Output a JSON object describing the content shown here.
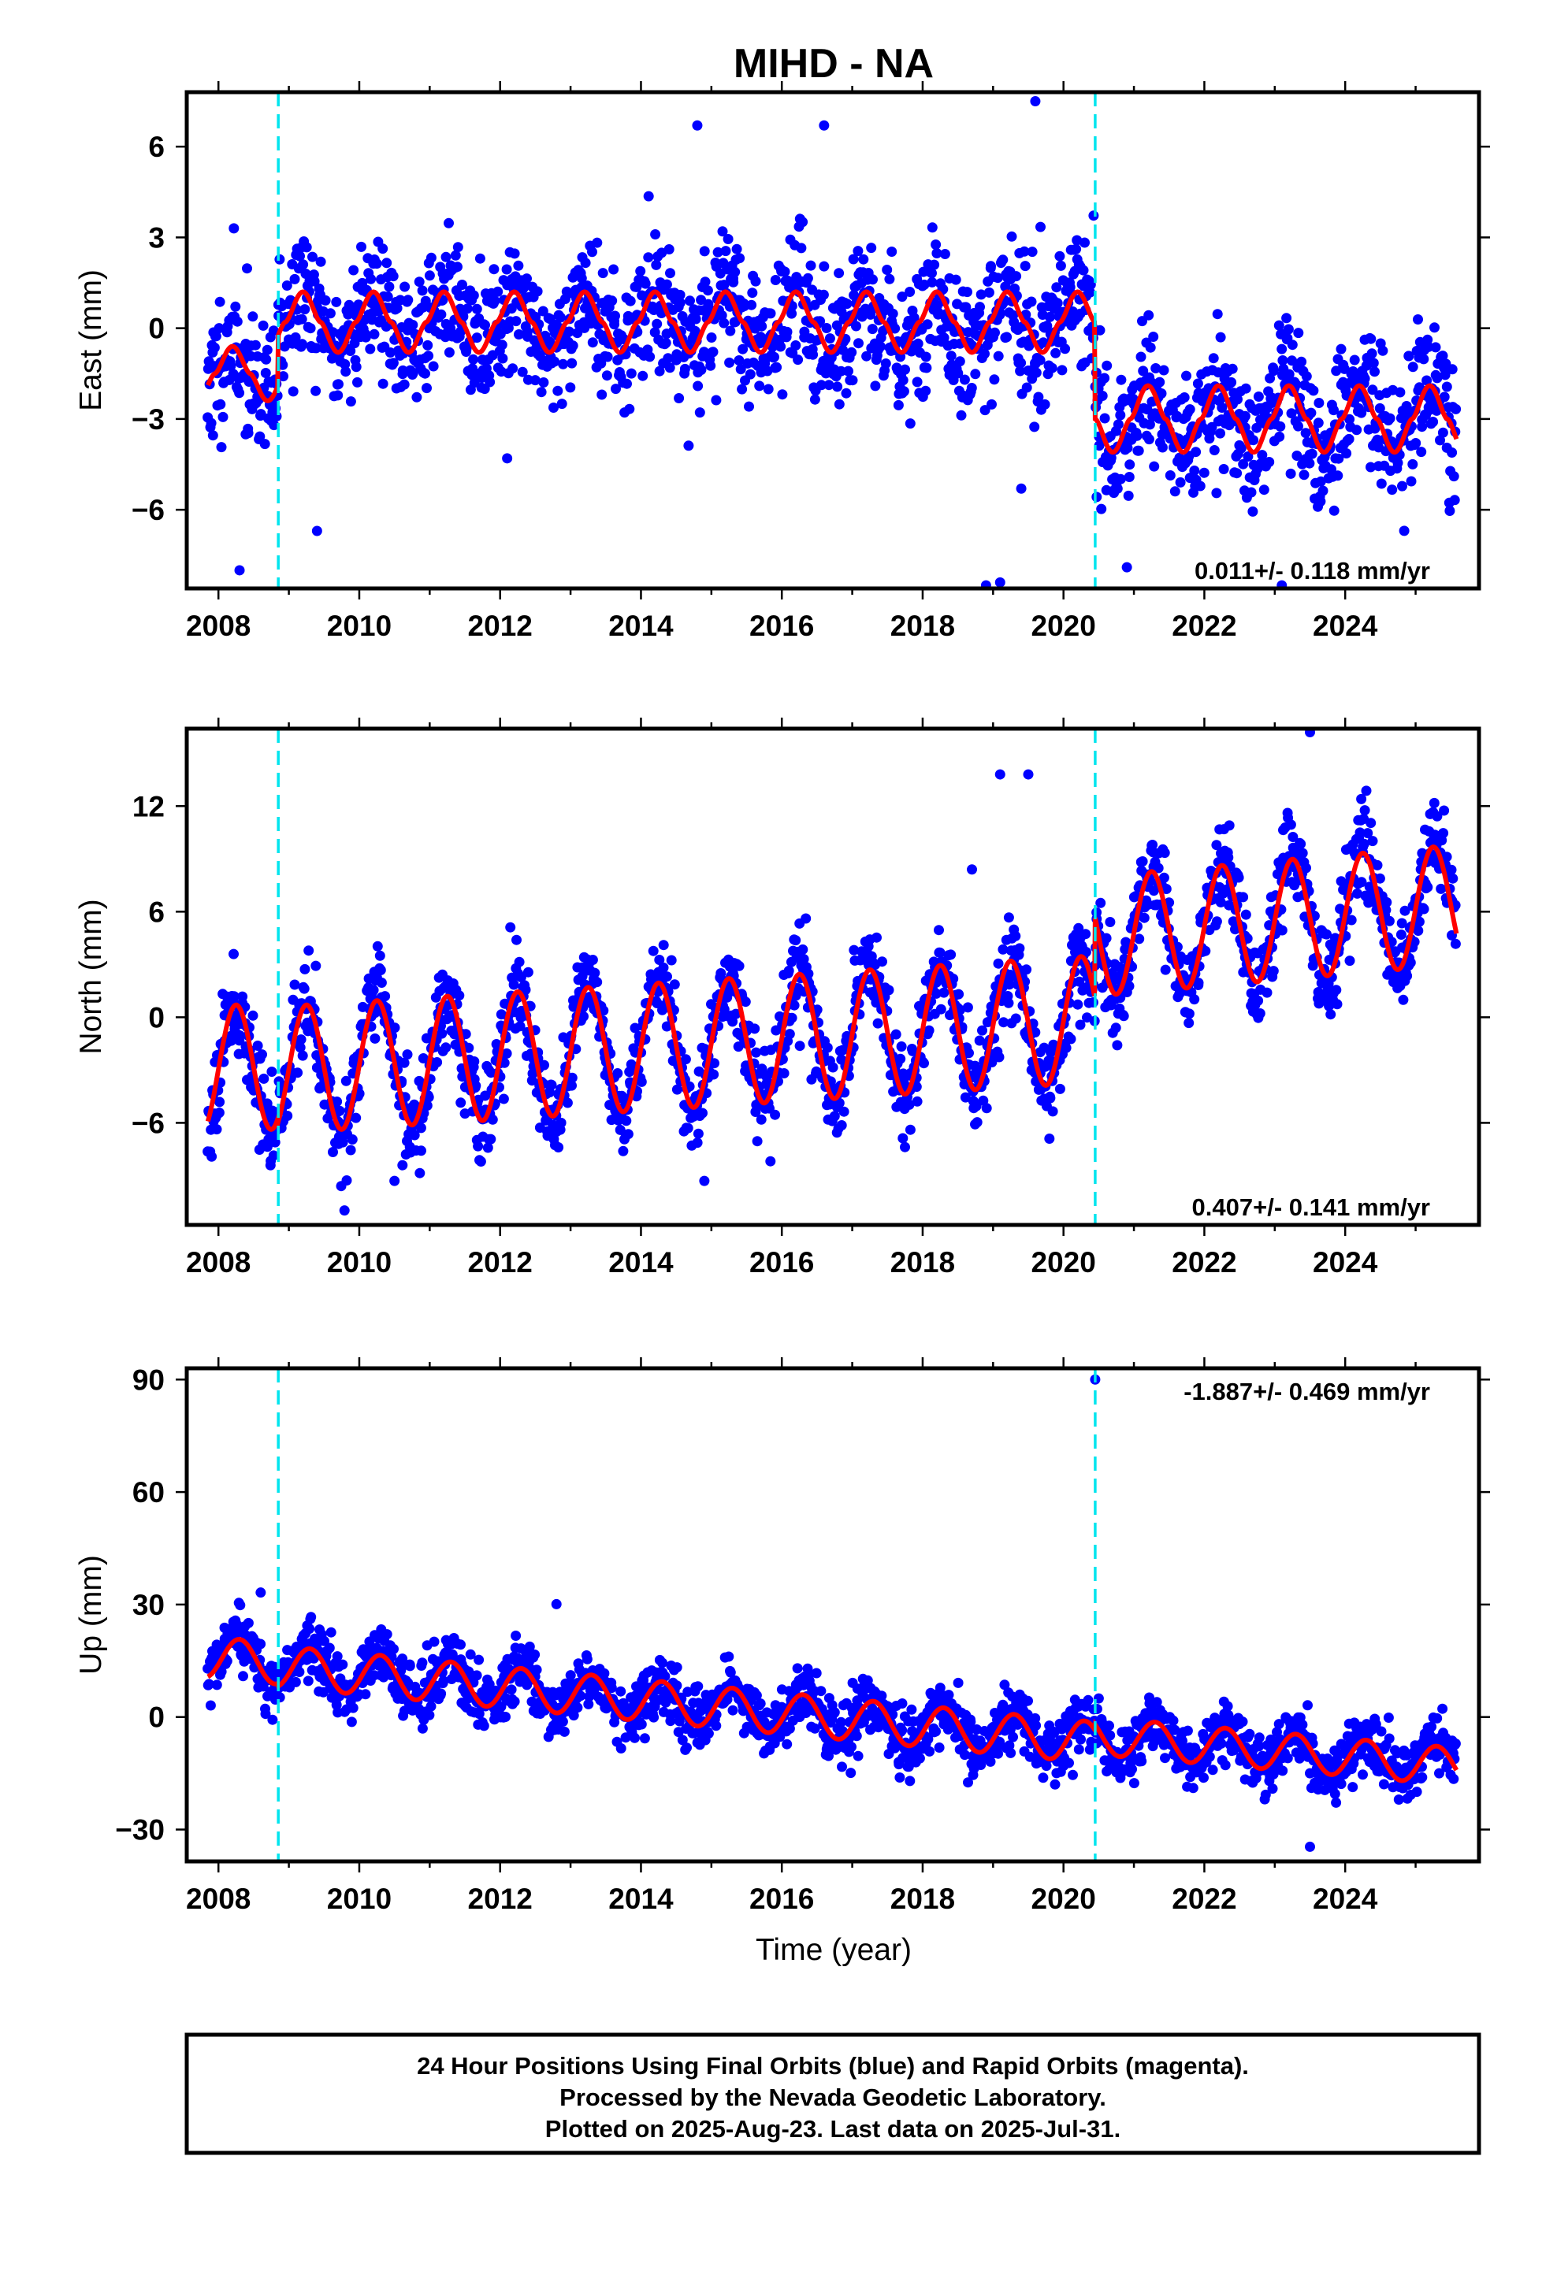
{
  "title": "MIHD - NA",
  "xlabel": "Time (year)",
  "footer": {
    "line1": "24 Hour Positions Using Final Orbits (blue) and Rapid Orbits (magenta).",
    "line2": "Processed by the Nevada Geodetic Laboratory.",
    "line3": "Plotted on 2025-Aug-23. Last data on 2025-Jul-31."
  },
  "colors": {
    "final_points": "#0000ff",
    "model": "#ff0000",
    "steps": "#00e5ee"
  },
  "chart_data": [
    {
      "type": "scatter",
      "ylabel": "East (mm)",
      "rate_text": "0.011+/- 0.118 mm/yr",
      "xlim": [
        2007.55,
        2025.9
      ],
      "ylim": [
        -8.6,
        7.8
      ],
      "x_ticks": [
        2008,
        2010,
        2012,
        2014,
        2016,
        2018,
        2020,
        2022,
        2024
      ],
      "y_ticks": [
        -6,
        -3,
        0,
        3,
        6
      ],
      "y_tick_labels": [
        "−6",
        "−3",
        "0",
        "3",
        "6"
      ],
      "steps": [
        2008.85,
        2020.45
      ],
      "model": {
        "segments": [
          [
            2007.85,
            -1.5,
            0.0,
            0.9
          ],
          [
            2008.85,
            0.2,
            0.0,
            1.0
          ],
          [
            2020.45,
            -3.0,
            0.0,
            1.1
          ]
        ],
        "phase": 0.2,
        "sharp": 1.6
      },
      "scatter": {
        "noise": 1.1,
        "density": 1900,
        "seed": 11
      },
      "outliers": [
        [
          2008.3,
          -8.0
        ],
        [
          2009.4,
          -6.7
        ],
        [
          2012.1,
          -4.3
        ],
        [
          2018.9,
          -8.5
        ],
        [
          2019.1,
          -8.4
        ],
        [
          2019.4,
          -5.3
        ],
        [
          2019.6,
          7.5
        ],
        [
          2014.8,
          6.7
        ],
        [
          2016.6,
          6.7
        ],
        [
          2020.9,
          -7.9
        ],
        [
          2023.1,
          -8.5
        ]
      ]
    },
    {
      "type": "scatter",
      "ylabel": "North (mm)",
      "rate_text": "0.407+/- 0.141 mm/yr",
      "xlim": [
        2007.55,
        2025.9
      ],
      "ylim": [
        -11.8,
        16.4
      ],
      "x_ticks": [
        2008,
        2010,
        2012,
        2014,
        2016,
        2018,
        2020,
        2022,
        2024
      ],
      "y_ticks": [
        -6,
        0,
        6,
        12
      ],
      "y_tick_labels": [
        "−6",
        "0",
        "6",
        "12"
      ],
      "steps": [
        2008.85,
        2020.45
      ],
      "model": {
        "segments": [
          [
            2007.85,
            -3.0,
            0.25,
            3.6
          ],
          [
            2008.85,
            -3.0,
            0.25,
            3.6
          ],
          [
            2020.45,
            4.6,
            0.35,
            3.4
          ]
        ],
        "phase": 0.25,
        "sharp": 1.0
      },
      "scatter": {
        "noise": 1.3,
        "density": 1900,
        "seed": 23
      },
      "outliers": [
        [
          2019.1,
          13.8
        ],
        [
          2019.5,
          13.8
        ],
        [
          2023.5,
          16.2
        ],
        [
          2018.7,
          8.4
        ],
        [
          2019.8,
          -6.9
        ],
        [
          2010.5,
          -9.3
        ],
        [
          2014.9,
          -9.3
        ]
      ]
    },
    {
      "type": "scatter",
      "ylabel": "Up (mm)",
      "rate_text": "-1.887+/- 0.469 mm/yr",
      "xlim": [
        2007.55,
        2025.9
      ],
      "ylim": [
        -38.5,
        93
      ],
      "x_ticks": [
        2008,
        2010,
        2012,
        2014,
        2016,
        2018,
        2020,
        2022,
        2024
      ],
      "y_ticks": [
        -30,
        0,
        30,
        60,
        90
      ],
      "y_tick_labels": [
        "−30",
        "0",
        "30",
        "60",
        "90"
      ],
      "steps": [
        2008.85,
        2020.45
      ],
      "model": {
        "segments": [
          [
            2007.85,
            16.0,
            -1.75,
            5.5
          ],
          [
            2008.85,
            13.5,
            -1.75,
            5.5
          ],
          [
            2020.45,
            -5.0,
            -1.6,
            5.0
          ]
        ],
        "phase": 0.3,
        "sharp": 1.0
      },
      "scatter": {
        "noise": 4.0,
        "density": 1900,
        "seed": 37
      },
      "outliers": [
        [
          2020.45,
          90
        ],
        [
          2023.5,
          -34.6
        ],
        [
          2008.6,
          33.2
        ],
        [
          2012.8,
          30.1
        ]
      ]
    }
  ]
}
